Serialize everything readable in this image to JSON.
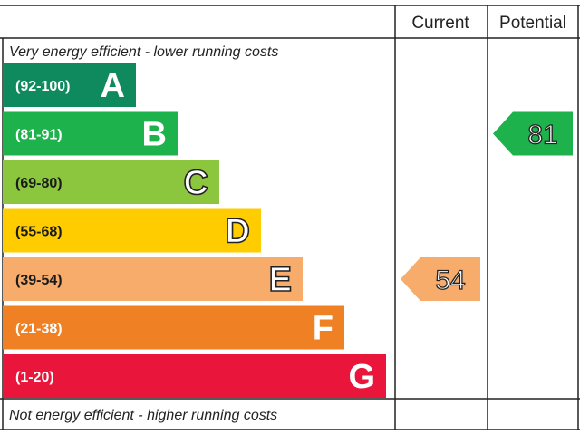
{
  "chart_data": {
    "type": "bar",
    "header": {
      "current": "Current",
      "potential": "Potential"
    },
    "top_caption": "Very energy efficient - lower running costs",
    "bottom_caption": "Not energy efficient - higher running costs",
    "bands": [
      {
        "letter": "A",
        "range": "(92-100)",
        "color": "#0f8a5e"
      },
      {
        "letter": "B",
        "range": "(81-91)",
        "color": "#1db24b"
      },
      {
        "letter": "C",
        "range": "(69-80)",
        "color": "#8cc63f"
      },
      {
        "letter": "D",
        "range": "(55-68)",
        "color": "#ffcc00"
      },
      {
        "letter": "E",
        "range": "(39-54)",
        "color": "#f7ac6b"
      },
      {
        "letter": "F",
        "range": "(21-38)",
        "color": "#ef8023"
      },
      {
        "letter": "G",
        "range": "(1-20)",
        "color": "#e9153b"
      }
    ],
    "current": {
      "value": 54,
      "band": "E"
    },
    "potential": {
      "value": 81,
      "band": "B"
    }
  }
}
